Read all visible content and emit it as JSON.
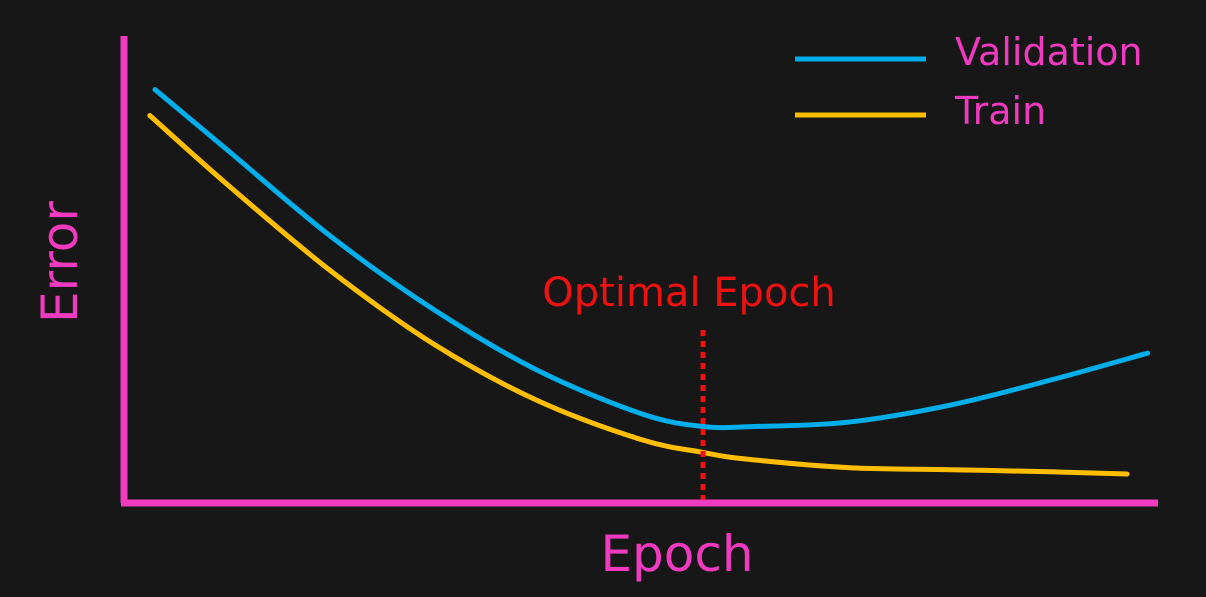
{
  "colors": {
    "background": "#171717",
    "axis": "#f03ac0",
    "validation": "#00aeea",
    "train": "#ffbf00",
    "annotation": "#ee1111"
  },
  "chart_data": {
    "type": "line",
    "title": "",
    "xlabel": "Epoch",
    "ylabel": "Error",
    "xlim": [
      0,
      100
    ],
    "ylim": [
      0,
      100
    ],
    "grid": false,
    "ticks": false,
    "legend": {
      "placement": "top-right"
    },
    "series": [
      {
        "name": "Validation",
        "color": "#00aeea",
        "x": [
          3,
          10,
          20,
          30,
          40,
          50,
          56,
          61,
          70,
          80,
          90,
          99
        ],
        "y": [
          92,
          78,
          58,
          41,
          27,
          17,
          14,
          14,
          15,
          19,
          25,
          31
        ]
      },
      {
        "name": "Train",
        "color": "#ffbf00",
        "x": [
          2.5,
          10,
          20,
          30,
          40,
          50,
          56,
          60,
          70,
          80,
          90,
          97
        ],
        "y": [
          86,
          70,
          50,
          33,
          20,
          11,
          8,
          6.5,
          4.5,
          4,
          3.5,
          3
        ]
      }
    ],
    "annotations": [
      {
        "label": "Optimal Epoch",
        "x": 56,
        "color": "#ee1111",
        "style": "dotted vertical line"
      }
    ]
  }
}
